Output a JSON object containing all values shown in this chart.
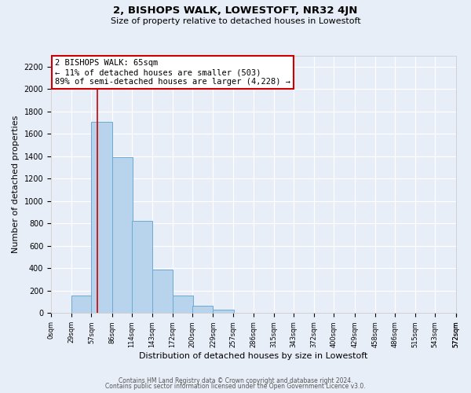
{
  "title": "2, BISHOPS WALK, LOWESTOFT, NR32 4JN",
  "subtitle": "Size of property relative to detached houses in Lowestoft",
  "xlabel": "Distribution of detached houses by size in Lowestoft",
  "ylabel": "Number of detached properties",
  "bar_labels": [
    "0sqm",
    "29sqm",
    "57sqm",
    "86sqm",
    "114sqm",
    "143sqm",
    "172sqm",
    "200sqm",
    "229sqm",
    "257sqm",
    "286sqm",
    "315sqm",
    "343sqm",
    "372sqm",
    "400sqm",
    "429sqm",
    "458sqm",
    "486sqm",
    "515sqm",
    "543sqm",
    "572sqm"
  ],
  "bar_values": [
    5,
    155,
    1710,
    1390,
    820,
    390,
    160,
    65,
    30,
    0,
    0,
    0,
    0,
    0,
    0,
    0,
    0,
    0,
    0,
    0,
    0
  ],
  "bar_edges": [
    0,
    29,
    57,
    86,
    114,
    143,
    172,
    200,
    229,
    257,
    286,
    315,
    343,
    372,
    400,
    429,
    458,
    486,
    515,
    543,
    572
  ],
  "bar_color": "#b8d4ed",
  "bar_edge_color": "#6aaad4",
  "vline_x": 65,
  "vline_color": "#cc0000",
  "annotation_text": "2 BISHOPS WALK: 65sqm\n← 11% of detached houses are smaller (503)\n89% of semi-detached houses are larger (4,228) →",
  "annotation_box_color": "#ffffff",
  "annotation_box_edge": "#cc0000",
  "ylim": [
    0,
    2300
  ],
  "yticks": [
    0,
    200,
    400,
    600,
    800,
    1000,
    1200,
    1400,
    1600,
    1800,
    2000,
    2200
  ],
  "background_color": "#e8eef8",
  "grid_color": "#ffffff",
  "footer_line1": "Contains HM Land Registry data © Crown copyright and database right 2024.",
  "footer_line2": "Contains public sector information licensed under the Open Government Licence v3.0."
}
